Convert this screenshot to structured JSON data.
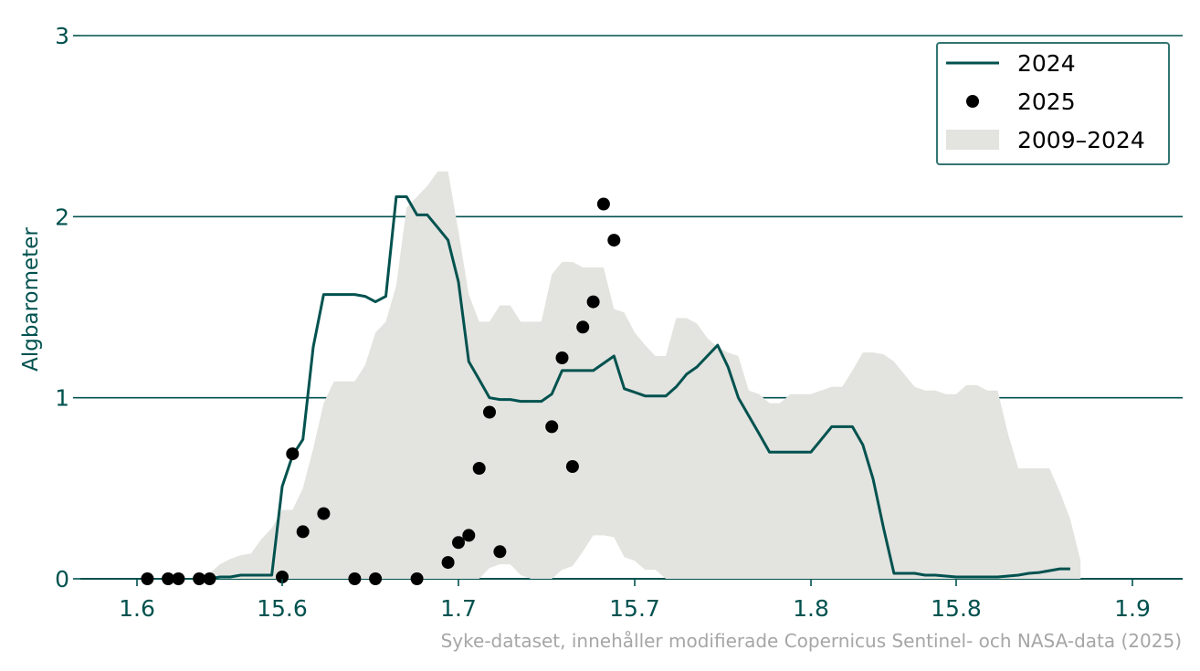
{
  "source_note": "Syke-dataset, innehåller modifierade Copernicus Sentinel- och NASA-data (2025)",
  "colors": {
    "line": "#00524f",
    "dots": "#000000",
    "band": "#e3e3df",
    "axis": "#00524f",
    "source": "#a6a6a6"
  },
  "chart_data": {
    "type": "line",
    "ylabel": "Algbarometer",
    "ylim": [
      0,
      3
    ],
    "yticks": [
      0,
      1,
      2,
      3
    ],
    "xlim": [
      0,
      100
    ],
    "xticks": [
      {
        "at": 5,
        "label": "1.6"
      },
      {
        "at": 19,
        "label": "15.6"
      },
      {
        "at": 36,
        "label": "1.7"
      },
      {
        "at": 53,
        "label": "15.7"
      },
      {
        "at": 70,
        "label": "1.8"
      },
      {
        "at": 84,
        "label": "15.8"
      },
      {
        "at": 101,
        "label": "1.9"
      }
    ],
    "grid": "horizontal",
    "legend_position": "top-right",
    "legend": [
      "2024",
      "2025",
      "2009–2024"
    ],
    "series": [
      {
        "name": "2024",
        "kind": "line",
        "points": [
          [
            12,
            0
          ],
          [
            13,
            0.01
          ],
          [
            14,
            0.01
          ],
          [
            15,
            0.02
          ],
          [
            16,
            0.02
          ],
          [
            17,
            0.02
          ],
          [
            18,
            0.02
          ],
          [
            19,
            0.51
          ],
          [
            20,
            0.68
          ],
          [
            21,
            0.77
          ],
          [
            22,
            1.28
          ],
          [
            23,
            1.57
          ],
          [
            24,
            1.57
          ],
          [
            25,
            1.57
          ],
          [
            26,
            1.57
          ],
          [
            27,
            1.56
          ],
          [
            28,
            1.53
          ],
          [
            29,
            1.56
          ],
          [
            30,
            2.11
          ],
          [
            31,
            2.11
          ],
          [
            32,
            2.01
          ],
          [
            33,
            2.01
          ],
          [
            34,
            1.94
          ],
          [
            35,
            1.87
          ],
          [
            36,
            1.64
          ],
          [
            37,
            1.2
          ],
          [
            38,
            1.1
          ],
          [
            39,
            1.0
          ],
          [
            40,
            0.99
          ],
          [
            41,
            0.99
          ],
          [
            42,
            0.98
          ],
          [
            43,
            0.98
          ],
          [
            44,
            0.98
          ],
          [
            45,
            1.02
          ],
          [
            46,
            1.15
          ],
          [
            47,
            1.15
          ],
          [
            48,
            1.15
          ],
          [
            49,
            1.15
          ],
          [
            50,
            1.19
          ],
          [
            51,
            1.23
          ],
          [
            52,
            1.05
          ],
          [
            53,
            1.03
          ],
          [
            54,
            1.01
          ],
          [
            55,
            1.01
          ],
          [
            56,
            1.01
          ],
          [
            57,
            1.06
          ],
          [
            58,
            1.13
          ],
          [
            59,
            1.17
          ],
          [
            60,
            1.23
          ],
          [
            61,
            1.29
          ],
          [
            62,
            1.17
          ],
          [
            63,
            1.0
          ],
          [
            64,
            0.9
          ],
          [
            65,
            0.8
          ],
          [
            66,
            0.7
          ],
          [
            67,
            0.7
          ],
          [
            68,
            0.7
          ],
          [
            69,
            0.7
          ],
          [
            70,
            0.7
          ],
          [
            71,
            0.77
          ],
          [
            72,
            0.84
          ],
          [
            73,
            0.84
          ],
          [
            74,
            0.84
          ],
          [
            75,
            0.74
          ],
          [
            76,
            0.55
          ],
          [
            77,
            0.28
          ],
          [
            78,
            0.03
          ],
          [
            79,
            0.03
          ],
          [
            80,
            0.03
          ],
          [
            81,
            0.02
          ],
          [
            82,
            0.02
          ],
          [
            83,
            0.015
          ],
          [
            84,
            0.01
          ],
          [
            85,
            0.01
          ],
          [
            86,
            0.01
          ],
          [
            87,
            0.01
          ],
          [
            88,
            0.01
          ],
          [
            89,
            0.015
          ],
          [
            90,
            0.02
          ],
          [
            91,
            0.03
          ],
          [
            92,
            0.035
          ],
          [
            93,
            0.045
          ],
          [
            94,
            0.055
          ],
          [
            95,
            0.055
          ]
        ]
      },
      {
        "name": "2025",
        "kind": "scatter",
        "points": [
          [
            6,
            0
          ],
          [
            8,
            0
          ],
          [
            9,
            0
          ],
          [
            11,
            0
          ],
          [
            12,
            0
          ],
          [
            19,
            0.01
          ],
          [
            20,
            0.69
          ],
          [
            21,
            0.26
          ],
          [
            23,
            0.36
          ],
          [
            26,
            0
          ],
          [
            28,
            0
          ],
          [
            32,
            0
          ],
          [
            35,
            0.09
          ],
          [
            36,
            0.2
          ],
          [
            37,
            0.24
          ],
          [
            38,
            0.61
          ],
          [
            39,
            0.92
          ],
          [
            40,
            0.15
          ],
          [
            45,
            0.84
          ],
          [
            46,
            1.22
          ],
          [
            47,
            0.62
          ],
          [
            48,
            1.39
          ],
          [
            49,
            1.53
          ],
          [
            50,
            2.07
          ],
          [
            51,
            1.87
          ]
        ]
      },
      {
        "name": "2009–2024",
        "kind": "band",
        "upper": [
          [
            11,
            0
          ],
          [
            12,
            0.03
          ],
          [
            13,
            0.08
          ],
          [
            14,
            0.11
          ],
          [
            15,
            0.13
          ],
          [
            16,
            0.14
          ],
          [
            17,
            0.22
          ],
          [
            18,
            0.28
          ],
          [
            19,
            0.38
          ],
          [
            20,
            0.38
          ],
          [
            21,
            0.5
          ],
          [
            22,
            0.72
          ],
          [
            23,
            0.97
          ],
          [
            24,
            1.09
          ],
          [
            25,
            1.09
          ],
          [
            26,
            1.09
          ],
          [
            27,
            1.18
          ],
          [
            28,
            1.36
          ],
          [
            29,
            1.42
          ],
          [
            30,
            1.62
          ],
          [
            31,
            2.05
          ],
          [
            32,
            2.11
          ],
          [
            33,
            2.17
          ],
          [
            34,
            2.25
          ],
          [
            35,
            2.25
          ],
          [
            36,
            1.92
          ],
          [
            37,
            1.57
          ],
          [
            38,
            1.42
          ],
          [
            39,
            1.42
          ],
          [
            40,
            1.51
          ],
          [
            41,
            1.51
          ],
          [
            42,
            1.42
          ],
          [
            43,
            1.42
          ],
          [
            44,
            1.42
          ],
          [
            45,
            1.68
          ],
          [
            46,
            1.75
          ],
          [
            47,
            1.75
          ],
          [
            48,
            1.72
          ],
          [
            49,
            1.72
          ],
          [
            50,
            1.72
          ],
          [
            51,
            1.49
          ],
          [
            52,
            1.47
          ],
          [
            53,
            1.36
          ],
          [
            54,
            1.29
          ],
          [
            55,
            1.23
          ],
          [
            56,
            1.23
          ],
          [
            57,
            1.44
          ],
          [
            58,
            1.44
          ],
          [
            59,
            1.41
          ],
          [
            60,
            1.33
          ],
          [
            61,
            1.28
          ],
          [
            62,
            1.25
          ],
          [
            63,
            1.23
          ],
          [
            64,
            1.04
          ],
          [
            65,
            1.02
          ],
          [
            66,
            0.97
          ],
          [
            67,
            0.97
          ],
          [
            68,
            1.02
          ],
          [
            69,
            1.02
          ],
          [
            70,
            1.02
          ],
          [
            71,
            1.04
          ],
          [
            72,
            1.06
          ],
          [
            73,
            1.06
          ],
          [
            74,
            1.15
          ],
          [
            75,
            1.25
          ],
          [
            76,
            1.25
          ],
          [
            77,
            1.24
          ],
          [
            78,
            1.2
          ],
          [
            79,
            1.13
          ],
          [
            80,
            1.06
          ],
          [
            81,
            1.04
          ],
          [
            82,
            1.04
          ],
          [
            83,
            1.02
          ],
          [
            84,
            1.02
          ],
          [
            85,
            1.07
          ],
          [
            86,
            1.07
          ],
          [
            87,
            1.04
          ],
          [
            88,
            1.04
          ],
          [
            89,
            0.8
          ],
          [
            90,
            0.61
          ],
          [
            91,
            0.61
          ],
          [
            92,
            0.61
          ],
          [
            93,
            0.61
          ],
          [
            94,
            0.48
          ],
          [
            95,
            0.33
          ],
          [
            96,
            0.1
          ]
        ],
        "lower": [
          [
            11,
            0
          ],
          [
            12,
            0
          ],
          [
            13,
            0
          ],
          [
            14,
            0
          ],
          [
            15,
            0
          ],
          [
            16,
            0
          ],
          [
            17,
            0
          ],
          [
            18,
            0
          ],
          [
            19,
            0
          ],
          [
            20,
            0
          ],
          [
            21,
            0
          ],
          [
            22,
            0
          ],
          [
            23,
            0
          ],
          [
            24,
            0
          ],
          [
            25,
            0
          ],
          [
            26,
            0
          ],
          [
            27,
            0
          ],
          [
            28,
            0
          ],
          [
            29,
            0
          ],
          [
            30,
            0
          ],
          [
            31,
            0
          ],
          [
            32,
            0
          ],
          [
            33,
            0
          ],
          [
            34,
            0
          ],
          [
            35,
            0
          ],
          [
            36,
            0
          ],
          [
            37,
            0
          ],
          [
            38,
            0
          ],
          [
            39,
            0.06
          ],
          [
            40,
            0.08
          ],
          [
            41,
            0.08
          ],
          [
            42,
            0.02
          ],
          [
            43,
            0
          ],
          [
            44,
            0
          ],
          [
            45,
            0
          ],
          [
            46,
            0.05
          ],
          [
            47,
            0.07
          ],
          [
            48,
            0.15
          ],
          [
            49,
            0.24
          ],
          [
            50,
            0.24
          ],
          [
            51,
            0.23
          ],
          [
            52,
            0.12
          ],
          [
            53,
            0.1
          ],
          [
            54,
            0.05
          ],
          [
            55,
            0.05
          ],
          [
            56,
            0
          ],
          [
            57,
            0
          ],
          [
            58,
            0
          ],
          [
            59,
            0
          ],
          [
            60,
            0
          ],
          [
            61,
            0
          ],
          [
            62,
            0
          ],
          [
            63,
            0
          ],
          [
            64,
            0
          ],
          [
            65,
            0
          ],
          [
            66,
            0
          ],
          [
            67,
            0
          ],
          [
            68,
            0
          ],
          [
            69,
            0
          ],
          [
            70,
            0
          ],
          [
            71,
            0
          ],
          [
            72,
            0
          ],
          [
            73,
            0
          ],
          [
            74,
            0
          ],
          [
            75,
            0
          ],
          [
            76,
            0
          ],
          [
            77,
            0
          ],
          [
            78,
            0
          ],
          [
            79,
            0
          ],
          [
            80,
            0
          ],
          [
            81,
            0
          ],
          [
            82,
            0
          ],
          [
            83,
            0
          ],
          [
            84,
            0
          ],
          [
            85,
            0
          ],
          [
            86,
            0
          ],
          [
            87,
            0
          ],
          [
            88,
            0
          ],
          [
            89,
            0
          ],
          [
            90,
            0
          ],
          [
            91,
            0
          ],
          [
            92,
            0
          ],
          [
            93,
            0
          ],
          [
            94,
            0
          ],
          [
            95,
            0
          ],
          [
            96,
            0
          ]
        ]
      }
    ]
  }
}
